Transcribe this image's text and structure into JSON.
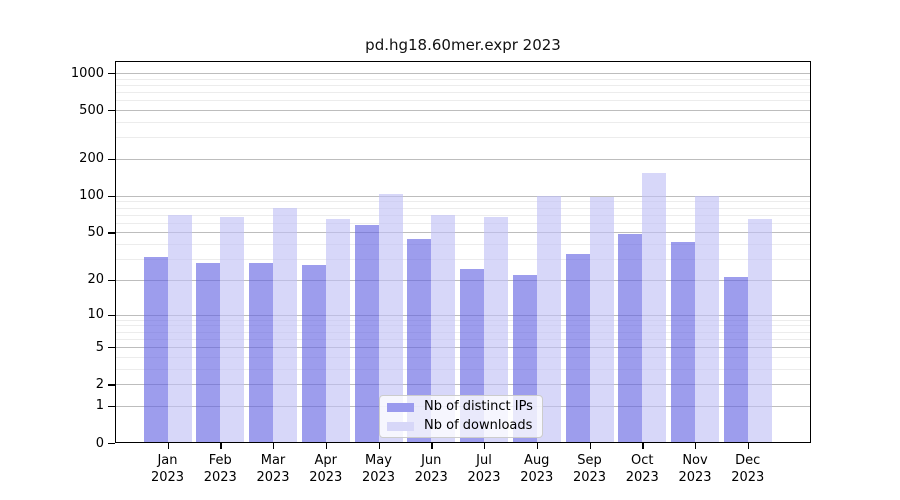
{
  "chart_data": {
    "type": "bar",
    "title": "pd.hg18.60mer.expr 2023",
    "categories": [
      "Jan",
      "Feb",
      "Mar",
      "Apr",
      "May",
      "Jun",
      "Jul",
      "Aug",
      "Sep",
      "Oct",
      "Nov",
      "Dec"
    ],
    "year_label": "2023",
    "series": [
      {
        "name": "Nb of distinct IPs",
        "values": [
          31,
          28,
          28,
          27,
          58,
          44,
          25,
          22,
          33,
          49,
          42,
          21
        ],
        "fill": "rgba(97,97,226,0.62)",
        "swatch": "#9a9aee"
      },
      {
        "name": "Nb of downloads",
        "values": [
          69,
          67,
          80,
          64,
          104,
          70,
          67,
          100,
          98,
          154,
          100,
          65
        ],
        "fill": "rgba(191,191,246,0.62)",
        "swatch": "#d7d7f8"
      }
    ],
    "y_axis": {
      "scale": "log10(1+v)",
      "ticks": [
        0,
        1,
        2,
        5,
        10,
        20,
        50,
        100,
        200,
        500,
        1000
      ],
      "minor_ticks": [
        3,
        4,
        6,
        7,
        8,
        9,
        30,
        40,
        60,
        70,
        80,
        90,
        300,
        400,
        600,
        700,
        800,
        900
      ],
      "max": 1000
    },
    "xlabel": "",
    "ylabel": "",
    "grid": "on",
    "legend_position": "bottom-center-inside",
    "colors": {
      "major_grid": "#bdbdbd",
      "minor_grid": "#ececec",
      "frame": "#000000",
      "text": "#000000",
      "background": "#ffffff"
    }
  }
}
